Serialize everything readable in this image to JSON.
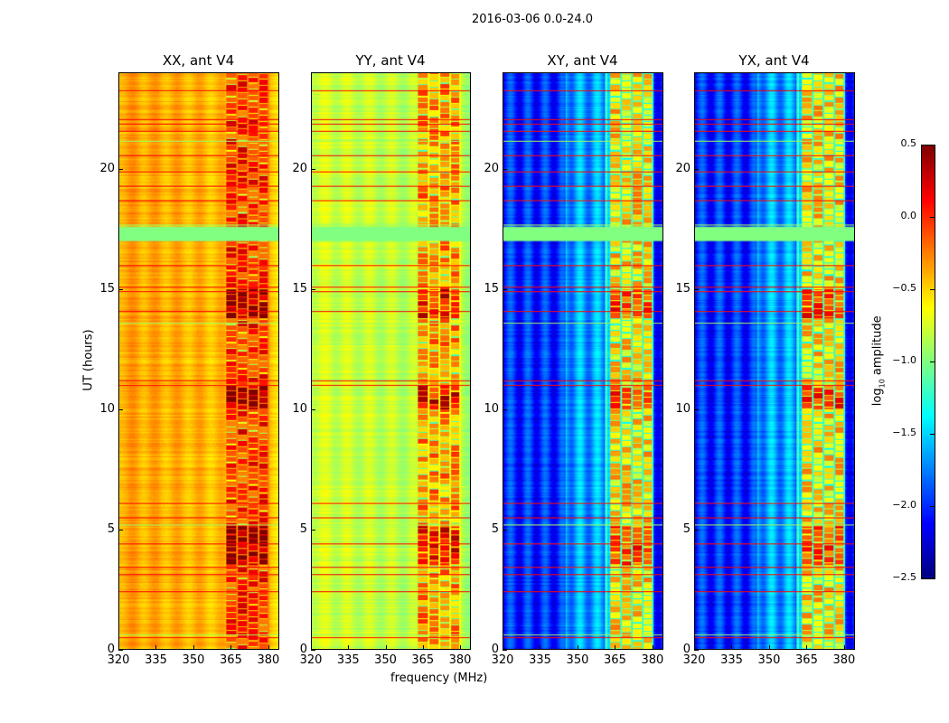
{
  "chart_data": {
    "type": "heatmap",
    "title": "2016-03-06 0.0-24.0",
    "xlabel": "frequency (MHz)",
    "ylabel": "UT (hours)",
    "xlim": [
      320,
      384
    ],
    "ylim": [
      0,
      24
    ],
    "xticks": [
      "320",
      "335",
      "350",
      "365",
      "380"
    ],
    "yticks": [
      "0",
      "5",
      "10",
      "15",
      "20"
    ],
    "panels": [
      {
        "title": "XX, ant V4",
        "base_log_amp": -0.35,
        "band_log_amp": 0.0
      },
      {
        "title": "YY, ant V4",
        "base_log_amp": -0.75,
        "band_log_amp": -0.3
      },
      {
        "title": "XY, ant V4",
        "base_log_amp": -2.0,
        "band_log_amp": -0.5
      },
      {
        "title": "YX, ant V4",
        "base_log_amp": -2.0,
        "band_log_amp": -0.5
      }
    ],
    "rfi_band_mhz": [
      363,
      380
    ],
    "strong_rfi_ut_hours": [
      [
        3.5,
        5.1
      ],
      [
        10.0,
        11.0
      ],
      [
        13.8,
        15.0
      ]
    ],
    "flagged_block_ut_hours": [
      17.0,
      17.6
    ],
    "flagged_ut_hours": [
      23.3,
      22.1,
      21.9,
      21.6,
      21.2,
      20.6,
      19.9,
      19.3,
      18.7,
      17.7,
      16.0,
      15.1,
      14.9,
      14.1,
      13.6,
      11.2,
      11.0,
      6.1,
      5.5,
      5.2,
      4.4,
      3.4,
      3.1,
      2.4,
      0.6,
      0.5
    ],
    "colorbar": {
      "label": "log10 amplitude",
      "label_main": "log",
      "label_sub": "10",
      "label_rest": " amplitude",
      "range": [
        -2.5,
        0.5
      ],
      "ticks": [
        "0.5",
        "0.0",
        "−0.5",
        "−1.0",
        "−1.5",
        "−2.0",
        "−2.5"
      ],
      "colormap": "jet"
    }
  }
}
